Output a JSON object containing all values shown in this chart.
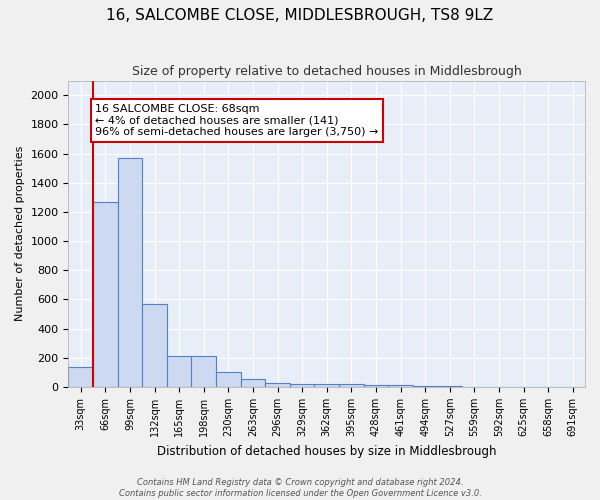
{
  "title": "16, SALCOMBE CLOSE, MIDDLESBROUGH, TS8 9LZ",
  "subtitle": "Size of property relative to detached houses in Middlesbrough",
  "xlabel": "Distribution of detached houses by size in Middlesbrough",
  "ylabel": "Number of detached properties",
  "bar_color": "#ccd9f0",
  "bar_edge_color": "#5580c8",
  "background_color": "#e8eef8",
  "grid_color": "#ffffff",
  "categories": [
    "33sqm",
    "66sqm",
    "99sqm",
    "132sqm",
    "165sqm",
    "198sqm",
    "230sqm",
    "263sqm",
    "296sqm",
    "329sqm",
    "362sqm",
    "395sqm",
    "428sqm",
    "461sqm",
    "494sqm",
    "527sqm",
    "559sqm",
    "592sqm",
    "625sqm",
    "658sqm",
    "691sqm"
  ],
  "values": [
    140,
    1270,
    1570,
    570,
    215,
    215,
    100,
    55,
    30,
    22,
    22,
    22,
    15,
    12,
    8,
    5,
    3,
    3,
    2,
    2,
    2
  ],
  "ylim": [
    0,
    2100
  ],
  "yticks": [
    0,
    200,
    400,
    600,
    800,
    1000,
    1200,
    1400,
    1600,
    1800,
    2000
  ],
  "red_line_bar_index": 0.5,
  "annotation_text": "16 SALCOMBE CLOSE: 68sqm\n← 4% of detached houses are smaller (141)\n96% of semi-detached houses are larger (3,750) →",
  "annotation_box_color": "#ffffff",
  "annotation_box_edge": "#cc0000",
  "footer1": "Contains HM Land Registry data © Crown copyright and database right 2024.",
  "footer2": "Contains public sector information licensed under the Open Government Licence v3.0."
}
